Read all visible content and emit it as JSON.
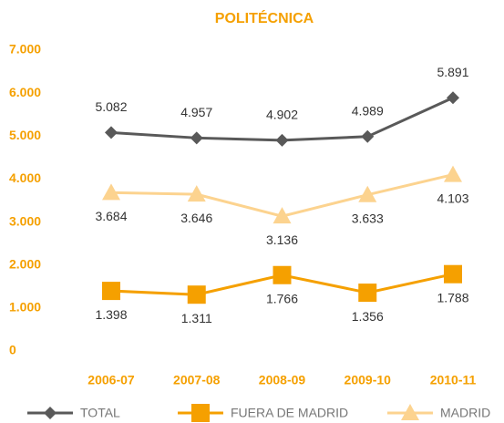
{
  "chart_data": {
    "type": "line",
    "title": "POLITÉCNICA",
    "categories": [
      "2006-07",
      "2007-08",
      "2008-09",
      "2009-10",
      "2010-11"
    ],
    "series": [
      {
        "name": "TOTAL",
        "color": "#595959",
        "marker": "diamond",
        "values": [
          5082,
          4957,
          4902,
          4989,
          5891
        ],
        "value_labels": [
          "5.082",
          "4.957",
          "4.902",
          "4.989",
          "5.891"
        ]
      },
      {
        "name": "FUERA DE MADRID",
        "color": "#f5a000",
        "marker": "square",
        "values": [
          1398,
          1311,
          1766,
          1356,
          1788
        ],
        "value_labels": [
          "1.398",
          "1.311",
          "1.766",
          "1.356",
          "1.788"
        ]
      },
      {
        "name": "MADRID",
        "color": "#fcd38f",
        "marker": "triangle",
        "values": [
          3684,
          3646,
          3136,
          3633,
          4103
        ],
        "value_labels": [
          "3.684",
          "3.646",
          "3.136",
          "3.633",
          "4.103"
        ]
      }
    ],
    "ylim": [
      0,
      7000
    ],
    "yticks": [
      0,
      {
        "value": 1000,
        "label": "1.000"
      },
      {
        "value": 2000,
        "label": "2.000"
      },
      {
        "value": 3000,
        "label": "3.000"
      },
      {
        "value": 4000,
        "label": "4.000"
      },
      {
        "value": 5000,
        "label": "5.000"
      },
      {
        "value": 6000,
        "label": "6.000"
      },
      {
        "value": 7000,
        "label": "7.000"
      }
    ],
    "grid": false,
    "legend": "bottom"
  }
}
